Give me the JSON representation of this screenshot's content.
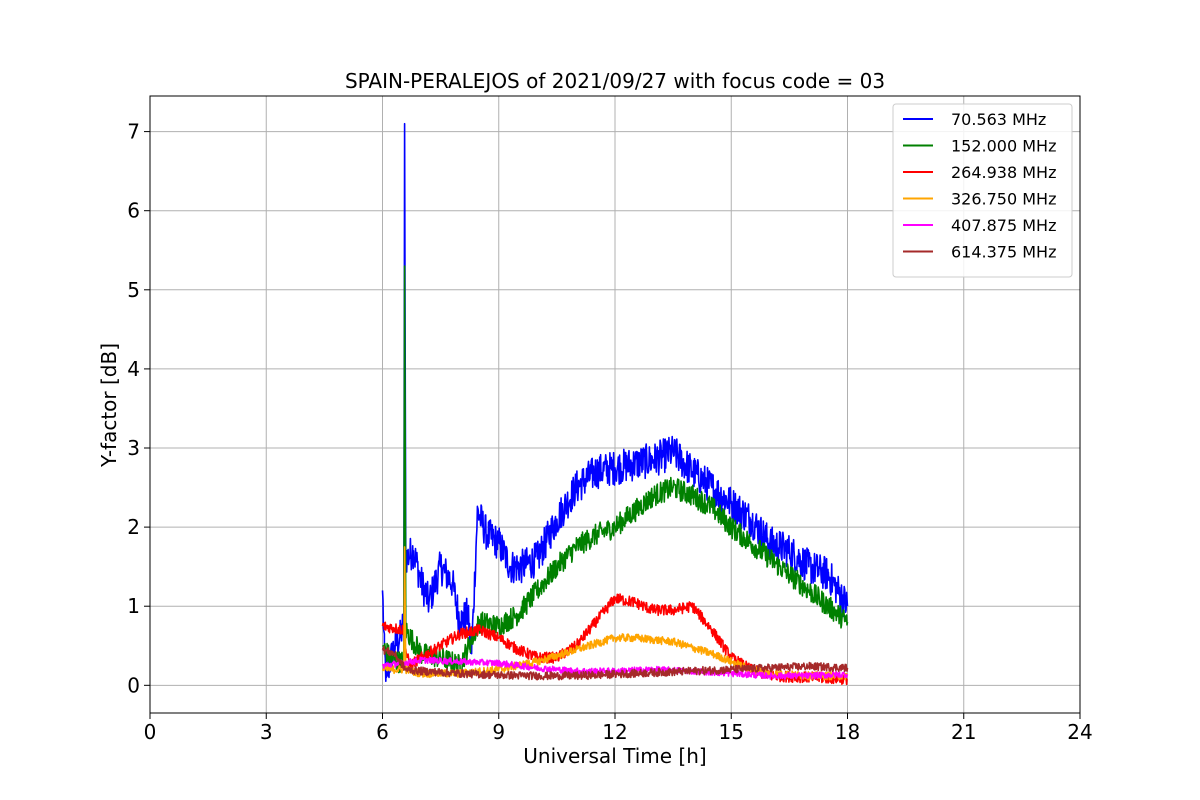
{
  "chart_data": {
    "type": "line",
    "title": "SPAIN-PERALEJOS of 2021/09/27 with focus code = 03",
    "xlabel": "Universal Time [h]",
    "ylabel": "Y-factor [dB]",
    "xlim": [
      0,
      24
    ],
    "ylim": [
      -0.35,
      7.45
    ],
    "xticks": [
      0,
      3,
      6,
      9,
      12,
      15,
      18,
      21,
      24
    ],
    "yticks": [
      0,
      1,
      2,
      3,
      4,
      5,
      6,
      7
    ],
    "grid": true,
    "legend_position": "upper right",
    "series": [
      {
        "name": " 70.563 MHz",
        "color": "#0000ff",
        "noise": 0.22,
        "points": [
          [
            6.0,
            1.2
          ],
          [
            6.05,
            0.4
          ],
          [
            6.1,
            0.1
          ],
          [
            6.2,
            0.3
          ],
          [
            6.3,
            0.5
          ],
          [
            6.45,
            0.6
          ],
          [
            6.55,
            0.8
          ],
          [
            6.57,
            7.1
          ],
          [
            6.6,
            1.6
          ],
          [
            6.8,
            1.7
          ],
          [
            7.0,
            1.3
          ],
          [
            7.2,
            1.05
          ],
          [
            7.5,
            1.5
          ],
          [
            7.8,
            1.3
          ],
          [
            8.0,
            0.8
          ],
          [
            8.2,
            0.9
          ],
          [
            8.3,
            0.4
          ],
          [
            8.45,
            2.2
          ],
          [
            8.7,
            1.9
          ],
          [
            9.0,
            1.8
          ],
          [
            9.3,
            1.5
          ],
          [
            9.6,
            1.5
          ],
          [
            10.0,
            1.6
          ],
          [
            10.5,
            2.1
          ],
          [
            11.0,
            2.5
          ],
          [
            11.5,
            2.7
          ],
          [
            12.0,
            2.75
          ],
          [
            12.5,
            2.8
          ],
          [
            13.0,
            2.85
          ],
          [
            13.5,
            2.95
          ],
          [
            14.0,
            2.7
          ],
          [
            14.5,
            2.5
          ],
          [
            15.0,
            2.3
          ],
          [
            15.5,
            2.1
          ],
          [
            16.0,
            1.8
          ],
          [
            16.5,
            1.7
          ],
          [
            17.0,
            1.5
          ],
          [
            17.5,
            1.4
          ],
          [
            18.0,
            1.0
          ]
        ]
      },
      {
        "name": "152.000 MHz",
        "color": "#008000",
        "noise": 0.14,
        "points": [
          [
            6.0,
            0.5
          ],
          [
            6.2,
            0.35
          ],
          [
            6.4,
            0.3
          ],
          [
            6.55,
            0.3
          ],
          [
            6.57,
            5.3
          ],
          [
            6.6,
            0.7
          ],
          [
            7.0,
            0.4
          ],
          [
            7.5,
            0.35
          ],
          [
            8.0,
            0.25
          ],
          [
            8.5,
            0.8
          ],
          [
            9.0,
            0.75
          ],
          [
            9.5,
            0.9
          ],
          [
            10.0,
            1.2
          ],
          [
            10.5,
            1.5
          ],
          [
            11.0,
            1.75
          ],
          [
            11.5,
            1.9
          ],
          [
            12.0,
            2.0
          ],
          [
            12.5,
            2.2
          ],
          [
            13.0,
            2.4
          ],
          [
            13.5,
            2.5
          ],
          [
            14.0,
            2.4
          ],
          [
            14.5,
            2.25
          ],
          [
            15.0,
            2.0
          ],
          [
            15.5,
            1.8
          ],
          [
            16.0,
            1.6
          ],
          [
            16.5,
            1.4
          ],
          [
            17.0,
            1.2
          ],
          [
            17.5,
            1.0
          ],
          [
            18.0,
            0.8
          ]
        ]
      },
      {
        "name": "264.938 MHz",
        "color": "#ff0000",
        "noise": 0.07,
        "points": [
          [
            6.0,
            0.75
          ],
          [
            6.55,
            0.7
          ],
          [
            6.57,
            0.5
          ],
          [
            6.7,
            0.25
          ],
          [
            7.0,
            0.35
          ],
          [
            7.5,
            0.5
          ],
          [
            8.0,
            0.65
          ],
          [
            8.5,
            0.7
          ],
          [
            9.0,
            0.6
          ],
          [
            9.5,
            0.45
          ],
          [
            10.0,
            0.35
          ],
          [
            10.5,
            0.35
          ],
          [
            11.0,
            0.5
          ],
          [
            11.5,
            0.8
          ],
          [
            12.0,
            1.1
          ],
          [
            12.5,
            1.05
          ],
          [
            13.0,
            0.95
          ],
          [
            13.5,
            0.95
          ],
          [
            14.0,
            1.0
          ],
          [
            14.5,
            0.7
          ],
          [
            15.0,
            0.35
          ],
          [
            15.5,
            0.2
          ],
          [
            16.0,
            0.12
          ],
          [
            17.0,
            0.1
          ],
          [
            18.0,
            0.08
          ]
        ]
      },
      {
        "name": "326.750 MHz",
        "color": "#ffa500",
        "noise": 0.05,
        "points": [
          [
            6.0,
            0.2
          ],
          [
            6.55,
            0.2
          ],
          [
            6.57,
            1.75
          ],
          [
            6.6,
            0.2
          ],
          [
            7.0,
            0.15
          ],
          [
            8.0,
            0.15
          ],
          [
            9.0,
            0.2
          ],
          [
            10.0,
            0.3
          ],
          [
            11.0,
            0.45
          ],
          [
            12.0,
            0.6
          ],
          [
            12.5,
            0.6
          ],
          [
            13.5,
            0.55
          ],
          [
            14.5,
            0.4
          ],
          [
            15.0,
            0.3
          ],
          [
            15.5,
            0.2
          ],
          [
            16.0,
            0.15
          ],
          [
            17.0,
            0.12
          ],
          [
            18.0,
            0.12
          ]
        ]
      },
      {
        "name": "407.875 MHz",
        "color": "#ff00ff",
        "noise": 0.04,
        "points": [
          [
            6.0,
            0.25
          ],
          [
            6.5,
            0.28
          ],
          [
            7.0,
            0.32
          ],
          [
            8.0,
            0.3
          ],
          [
            9.0,
            0.28
          ],
          [
            10.0,
            0.22
          ],
          [
            11.0,
            0.18
          ],
          [
            12.0,
            0.18
          ],
          [
            13.0,
            0.2
          ],
          [
            14.0,
            0.18
          ],
          [
            15.0,
            0.15
          ],
          [
            16.0,
            0.12
          ],
          [
            17.0,
            0.12
          ],
          [
            18.0,
            0.14
          ]
        ]
      },
      {
        "name": "614.375 MHz",
        "color": "#a52a2a",
        "noise": 0.05,
        "points": [
          [
            6.0,
            0.45
          ],
          [
            6.3,
            0.4
          ],
          [
            6.6,
            0.2
          ],
          [
            7.0,
            0.18
          ],
          [
            8.0,
            0.15
          ],
          [
            9.0,
            0.13
          ],
          [
            10.0,
            0.12
          ],
          [
            11.0,
            0.12
          ],
          [
            12.0,
            0.14
          ],
          [
            13.0,
            0.16
          ],
          [
            14.0,
            0.18
          ],
          [
            15.0,
            0.2
          ],
          [
            16.0,
            0.22
          ],
          [
            17.0,
            0.24
          ],
          [
            18.0,
            0.22
          ]
        ]
      }
    ]
  }
}
